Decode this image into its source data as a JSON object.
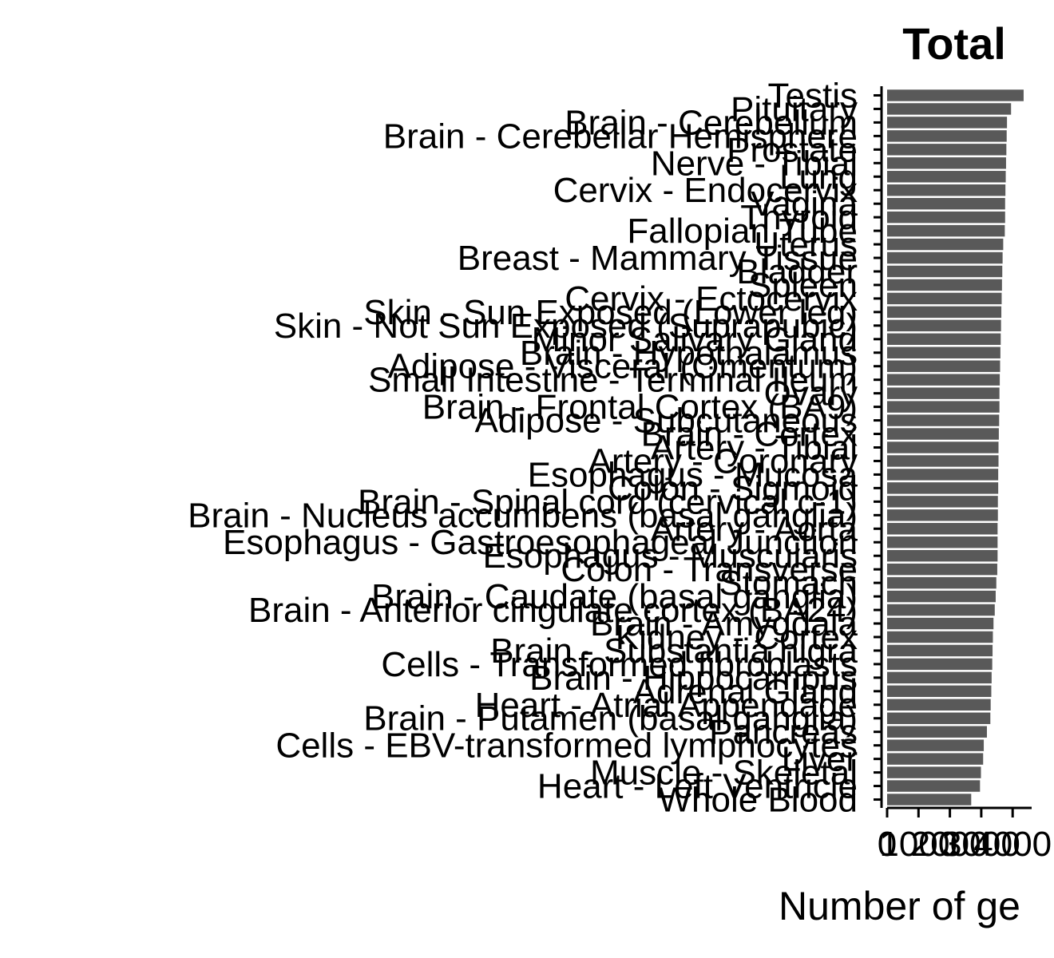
{
  "chart_data": {
    "type": "bar",
    "orientation": "horizontal",
    "title": "Total",
    "xlabel": "Number of ge",
    "ylabel": "",
    "xlim": [
      0,
      4700
    ],
    "x_ticks": [
      0,
      1000,
      2000,
      3000,
      4000
    ],
    "x_tick_labels": [
      "0",
      "1000",
      "2000",
      "3000",
      "4000"
    ],
    "bar_color": "#595959",
    "grid": false,
    "categories": [
      "Testis",
      "Pituitary",
      "Brain - Cerebellum",
      "Brain - Cerebellar Hemisphere",
      "Prostate",
      "Nerve - Tibial",
      "Lung",
      "Cervix - Endocervix",
      "Vagina",
      "Thyroid",
      "Fallopian Tube",
      "Uterus",
      "Breast - Mammary Tissue",
      "Bladder",
      "Spleen",
      "Cervix - Ectocervix",
      "Skin - Sun Exposed (Lower leg)",
      "Skin - Not Sun Exposed (Suprapubic)",
      "Minor Salivary Gland",
      "Brain - Hypothalamus",
      "Adipose - Visceral (Omentum)",
      "Small Intestine - Terminal Ileum",
      "Ovary",
      "Brain - Frontal Cortex (BA9)",
      "Adipose - Subcutaneous",
      "Brain - Cortex",
      "Artery - Tibial",
      "Artery - Coronary",
      "Esophagus - Mucosa",
      "Colon - Sigmoid",
      "Brain - Spinal cord (cervical c-1)",
      "Brain - Nucleus accumbens (basal ganglia)",
      "Artery - Aorta",
      "Esophagus - Gastroesophageal Junction",
      "Esophagus - Muscularis",
      "Colon - Transverse",
      "Stomach",
      "Brain - Caudate (basal ganglia)",
      "Brain - Anterior cingulate cortex (BA24)",
      "Brain - Amygdala",
      "Kidney - Cortex",
      "Brain - Substantia nigra",
      "Cells - Transformed fibroblasts",
      "Brain - Hippocampus",
      "Adrenal Gland",
      "Heart - Atrial Appendage",
      "Brain - Putamen (basal ganglia)",
      "Pancreas",
      "Cells - EBV-transformed lymphocytes",
      "Liver",
      "Muscle - Skeletal",
      "Heart - Left Ventricle",
      "Whole Blood"
    ],
    "values": [
      4350,
      3950,
      3820,
      3810,
      3800,
      3790,
      3780,
      3770,
      3760,
      3760,
      3750,
      3700,
      3680,
      3670,
      3660,
      3650,
      3640,
      3630,
      3620,
      3610,
      3600,
      3590,
      3580,
      3580,
      3570,
      3560,
      3550,
      3550,
      3540,
      3540,
      3530,
      3530,
      3520,
      3520,
      3520,
      3510,
      3480,
      3460,
      3430,
      3390,
      3370,
      3360,
      3350,
      3330,
      3320,
      3300,
      3290,
      3180,
      3080,
      3060,
      2990,
      2960,
      2680
    ]
  }
}
